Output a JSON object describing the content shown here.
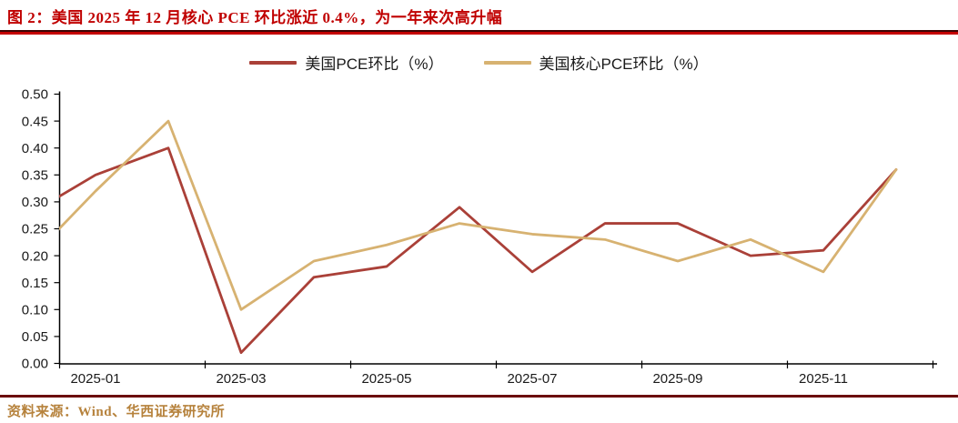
{
  "header": {
    "title": "图 2：美国 2025 年 12 月核心 PCE 环比涨近 0.4%，为一年来次高升幅"
  },
  "footer": {
    "source": "资料来源：Wind、华西证券研究所"
  },
  "colors": {
    "title_red": "#c00000",
    "top_separator_red": "#c40000",
    "bottom_separator_maroon": "#6b0a0a",
    "footer_gold": "#b6823c",
    "pce_line_red": "#aa4038",
    "core_pce_line_tan": "#d7b271",
    "axis_black": "#000000",
    "tick_label_black": "#1a1a1a"
  },
  "chart_data": {
    "type": "line",
    "title": "美国 2025 年 12 月核心 PCE 环比涨近 0.4%，为一年来次高升幅",
    "x": [
      "2024-12",
      "2025-01",
      "2025-02",
      "2025-03",
      "2025-04",
      "2025-05",
      "2025-06",
      "2025-07",
      "2025-08",
      "2025-09",
      "2025-10",
      "2025-11",
      "2025-12"
    ],
    "series": [
      {
        "name": "美国PCE环比（%）",
        "color": "#aa4038",
        "values": [
          0.27,
          0.35,
          0.4,
          0.02,
          0.16,
          0.18,
          0.29,
          0.17,
          0.26,
          0.26,
          0.2,
          0.21,
          0.36
        ]
      },
      {
        "name": "美国核心PCE环比（%）",
        "color": "#d7b271",
        "values": [
          0.18,
          0.32,
          0.45,
          0.1,
          0.19,
          0.22,
          0.26,
          0.24,
          0.23,
          0.19,
          0.23,
          0.17,
          0.36
        ]
      }
    ],
    "first_point_clipped_at_left_axis": true,
    "x_axis_tick_labels": [
      "2025-01",
      "2025-03",
      "2025-05",
      "2025-07",
      "2025-09",
      "2025-11"
    ],
    "y_axis_tick_labels": [
      "0.00",
      "0.05",
      "0.10",
      "0.15",
      "0.20",
      "0.25",
      "0.30",
      "0.35",
      "0.40",
      "0.45",
      "0.50"
    ],
    "ylim": [
      0.0,
      0.5
    ],
    "grid": false,
    "legend_position": "top-center"
  }
}
